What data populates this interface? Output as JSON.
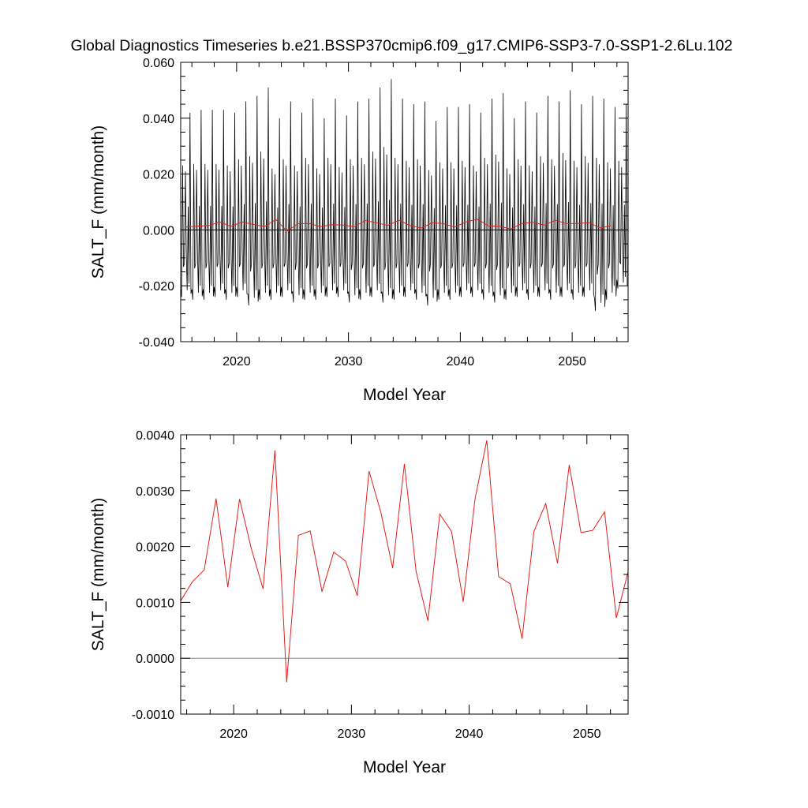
{
  "figure_title": "Global Diagnostics Timeseries b.e21.BSSP370cmip6.f09_g17.CMIP6-SSP3-7.0-SSP1-2.6Lu.102",
  "colors": {
    "monthly_line": "#000000",
    "annual_line": "#e0201b",
    "zero_line": "#000000",
    "frame": "#000000"
  },
  "chart_data": [
    {
      "type": "line",
      "title": "",
      "xlabel": "Model Year",
      "ylabel": "SALT_F (mm/month)",
      "xlim": [
        2015.0,
        2055.0
      ],
      "ylim": [
        -0.04,
        0.06
      ],
      "xticks": [
        2020,
        2030,
        2040,
        2050
      ],
      "yticks": [
        -0.04,
        -0.02,
        0.0,
        0.02,
        0.04,
        0.06
      ],
      "ytick_labels": [
        "-0.040",
        "-0.020",
        "0.000",
        "0.020",
        "0.040",
        "0.060"
      ],
      "grid": false,
      "reference_line_y": 0.0,
      "monthly_peaks": [
        0.042,
        0.043,
        0.043,
        0.043,
        0.042,
        0.046,
        0.048,
        0.051,
        0.04,
        0.046,
        0.042,
        0.047,
        0.04,
        0.047,
        0.041,
        0.046,
        0.047,
        0.051,
        0.054,
        0.047,
        0.045,
        0.046,
        0.039,
        0.044,
        0.044,
        0.045,
        0.042,
        0.047,
        0.049,
        0.04,
        0.046,
        0.042,
        0.048,
        0.046,
        0.05,
        0.045,
        0.048,
        0.047,
        0.044,
        0.045
      ],
      "monthly_troughs": [
        -0.024,
        -0.025,
        -0.025,
        -0.024,
        -0.025,
        -0.024,
        -0.027,
        -0.025,
        -0.025,
        -0.024,
        -0.026,
        -0.025,
        -0.025,
        -0.024,
        -0.024,
        -0.026,
        -0.025,
        -0.024,
        -0.026,
        -0.025,
        -0.024,
        -0.025,
        -0.027,
        -0.025,
        -0.025,
        -0.024,
        -0.024,
        -0.025,
        -0.026,
        -0.025,
        -0.024,
        -0.025,
        -0.024,
        -0.025,
        -0.024,
        -0.025,
        -0.024,
        -0.029,
        -0.025,
        -0.021
      ],
      "series": [
        {
          "style": "annual-mean",
          "x": [
            2015.5,
            2016.5,
            2017.5,
            2018.5,
            2019.5,
            2020.5,
            2021.5,
            2022.5,
            2023.5,
            2024.5,
            2025.5,
            2026.5,
            2027.5,
            2028.5,
            2029.5,
            2030.5,
            2031.5,
            2032.5,
            2033.5,
            2034.5,
            2035.5,
            2036.5,
            2037.5,
            2038.5,
            2039.5,
            2040.5,
            2041.5,
            2042.5,
            2043.5,
            2044.5,
            2045.5,
            2046.5,
            2047.5,
            2048.5,
            2049.5,
            2050.5,
            2051.5,
            2052.5,
            2053.5
          ],
          "y": [
            0.00103,
            0.00137,
            0.00158,
            0.00286,
            0.00127,
            0.00285,
            0.00196,
            0.00124,
            0.00372,
            -0.00043,
            0.0022,
            0.00228,
            0.00119,
            0.0019,
            0.00174,
            0.00112,
            0.00335,
            0.00261,
            0.00161,
            0.00348,
            0.00155,
            0.00067,
            0.00258,
            0.00227,
            0.00101,
            0.00285,
            0.0039,
            0.00146,
            0.00133,
            0.00035,
            0.00227,
            0.00277,
            0.0017,
            0.00346,
            0.00225,
            0.00229,
            0.00262,
            0.00072,
            0.00155
          ]
        }
      ]
    },
    {
      "type": "line",
      "title": "",
      "xlabel": "Model Year",
      "ylabel": "SALT_F (mm/month)",
      "xlim": [
        2015.5,
        2053.5
      ],
      "ylim": [
        -0.001,
        0.004
      ],
      "xticks": [
        2020,
        2030,
        2040,
        2050
      ],
      "yticks": [
        -0.001,
        0.0,
        0.001,
        0.002,
        0.003,
        0.004
      ],
      "ytick_labels": [
        "-0.0010",
        "0.0000",
        "0.0010",
        "0.0020",
        "0.0030",
        "0.0040"
      ],
      "grid": false,
      "reference_line_y": 0.0,
      "series": [
        {
          "style": "annual-mean",
          "x": [
            2015.5,
            2016.5,
            2017.5,
            2018.5,
            2019.5,
            2020.5,
            2021.5,
            2022.5,
            2023.5,
            2024.5,
            2025.5,
            2026.5,
            2027.5,
            2028.5,
            2029.5,
            2030.5,
            2031.5,
            2032.5,
            2033.5,
            2034.5,
            2035.5,
            2036.5,
            2037.5,
            2038.5,
            2039.5,
            2040.5,
            2041.5,
            2042.5,
            2043.5,
            2044.5,
            2045.5,
            2046.5,
            2047.5,
            2048.5,
            2049.5,
            2050.5,
            2051.5,
            2052.5,
            2053.5
          ],
          "y": [
            0.00103,
            0.00137,
            0.00158,
            0.00286,
            0.00127,
            0.00285,
            0.00196,
            0.00124,
            0.00372,
            -0.00043,
            0.0022,
            0.00228,
            0.00119,
            0.0019,
            0.00174,
            0.00112,
            0.00335,
            0.00261,
            0.00161,
            0.00348,
            0.00155,
            0.00067,
            0.00258,
            0.00227,
            0.00101,
            0.00285,
            0.0039,
            0.00146,
            0.00133,
            0.00035,
            0.00227,
            0.00277,
            0.0017,
            0.00346,
            0.00225,
            0.00229,
            0.00262,
            0.00072,
            0.00155
          ]
        }
      ]
    }
  ]
}
